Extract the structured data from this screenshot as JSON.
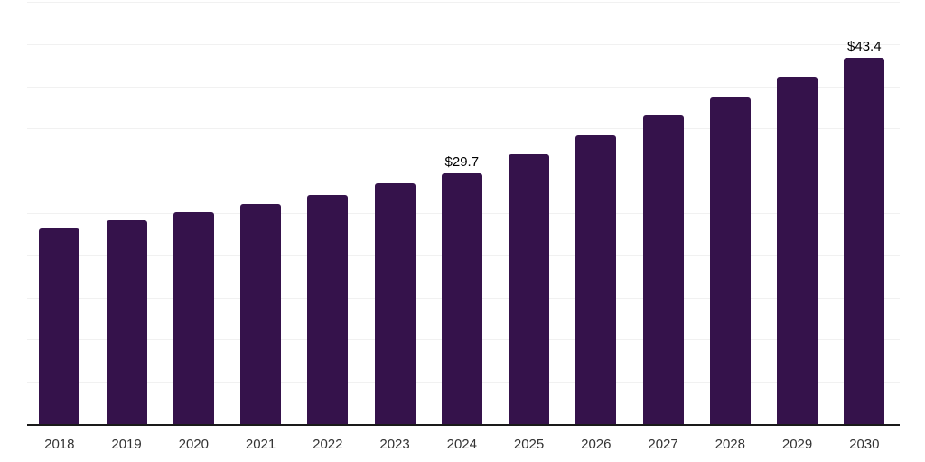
{
  "chart_data": {
    "type": "bar",
    "title": "",
    "xlabel": "",
    "ylabel": "",
    "categories": [
      "2018",
      "2019",
      "2020",
      "2021",
      "2022",
      "2023",
      "2024",
      "2025",
      "2026",
      "2027",
      "2028",
      "2029",
      "2030"
    ],
    "values": [
      23.2,
      24.1,
      25.1,
      26.1,
      27.1,
      28.5,
      29.7,
      31.9,
      34.2,
      36.5,
      38.7,
      41.1,
      43.4
    ],
    "annotations": [
      {
        "category": "2024",
        "label": "$29.7"
      },
      {
        "category": "2030",
        "label": "$43.4"
      }
    ],
    "ylim": [
      0,
      50
    ],
    "gridline_step": 5,
    "grid": true,
    "legend": "none",
    "y_axis_tick_labels_visible": false
  },
  "colors": {
    "bar": "#35124B",
    "gridline": "#F1F1F1",
    "axis_line": "#1A1A1A",
    "tick_label": "#333333",
    "data_label": "#000000",
    "background": "#FFFFFF"
  }
}
